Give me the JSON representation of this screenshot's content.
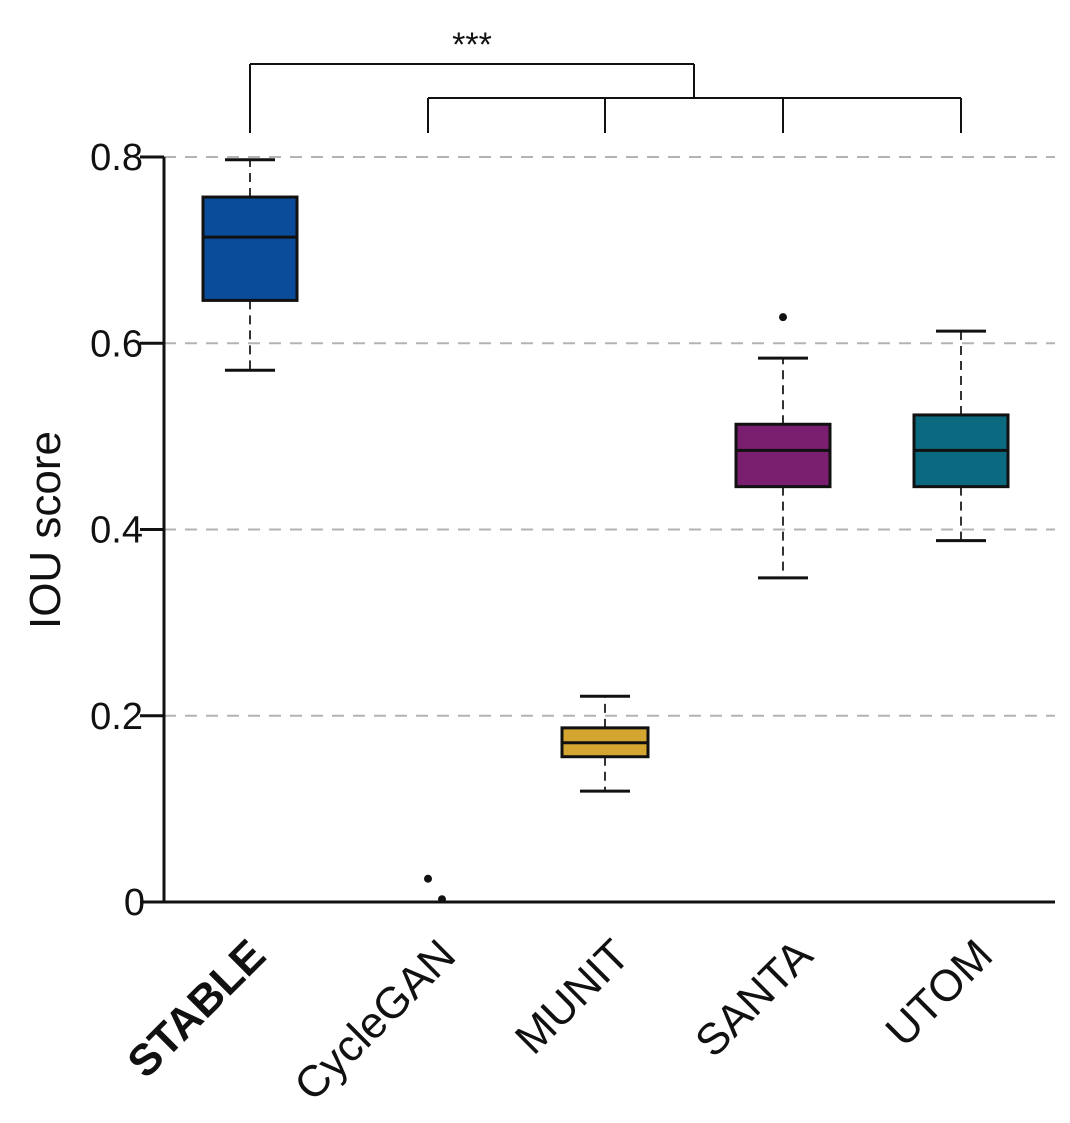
{
  "chart_data": {
    "type": "box",
    "ylabel": "IOU score",
    "xlabel": "",
    "ylim": [
      0,
      0.8
    ],
    "yticks": [
      {
        "value": 0,
        "label": "0"
      },
      {
        "value": 0.2,
        "label": "0.2"
      },
      {
        "value": 0.4,
        "label": "0.4"
      },
      {
        "value": 0.6,
        "label": "0.6"
      },
      {
        "value": 0.8,
        "label": "0.8"
      }
    ],
    "grid": "horizontal dashed at 0.2, 0.4, 0.6, 0.8",
    "categories": [
      "STABLE",
      "CycleGAN",
      "MUNIT",
      "SANTA",
      "UTOM"
    ],
    "boxes": [
      {
        "category": "STABLE",
        "color": "#0A4C99",
        "bold": true,
        "whisker_low": 0.571,
        "q1": 0.646,
        "median": 0.714,
        "q3": 0.757,
        "whisker_high": 0.797,
        "outliers": []
      },
      {
        "category": "CycleGAN",
        "color": "#6f6f6f",
        "bold": false,
        "whisker_low": 0.0,
        "q1": 0.0,
        "median": 0.0,
        "q3": 0.0,
        "whisker_high": 0.0,
        "outliers": [
          0.025,
          0.003
        ]
      },
      {
        "category": "MUNIT",
        "color": "#D4A531",
        "bold": false,
        "whisker_low": 0.119,
        "q1": 0.156,
        "median": 0.171,
        "q3": 0.187,
        "whisker_high": 0.221,
        "outliers": []
      },
      {
        "category": "SANTA",
        "color": "#7A1F70",
        "bold": false,
        "whisker_low": 0.348,
        "q1": 0.446,
        "median": 0.485,
        "q3": 0.513,
        "whisker_high": 0.584,
        "outliers": [
          0.628
        ]
      },
      {
        "category": "UTOM",
        "color": "#0B6A7F",
        "bold": false,
        "whisker_low": 0.388,
        "q1": 0.446,
        "median": 0.485,
        "q3": 0.523,
        "whisker_high": 0.613,
        "outliers": []
      }
    ],
    "significance": {
      "label": "***",
      "reference": "STABLE",
      "compared": [
        "CycleGAN",
        "MUNIT",
        "SANTA",
        "UTOM"
      ]
    }
  }
}
